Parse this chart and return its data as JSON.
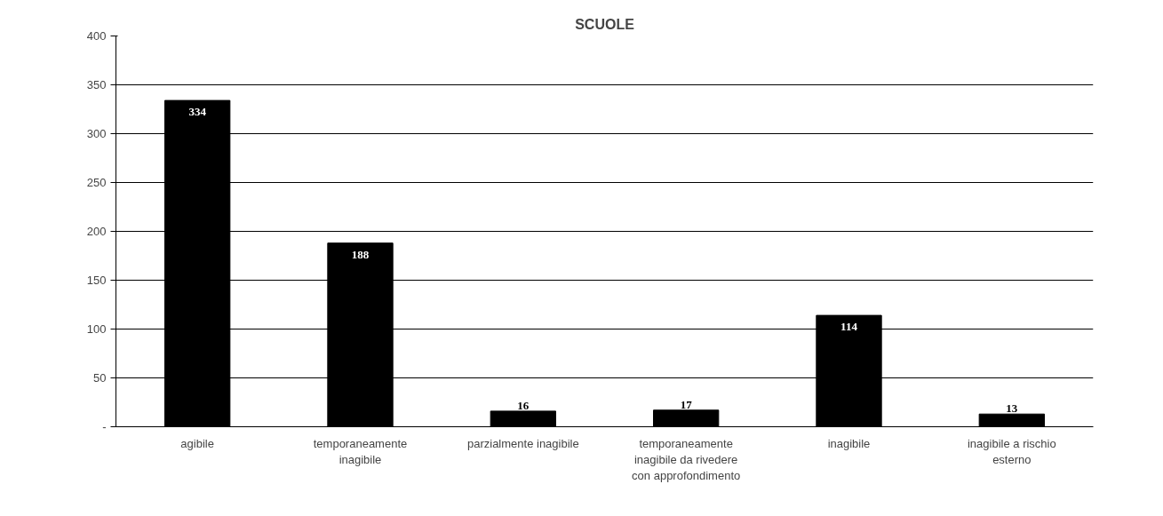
{
  "chart_data": {
    "type": "bar",
    "title": "SCUOLE",
    "categories": [
      "agibile",
      "temporaneamente inagibile",
      "parzialmente inagibile",
      "temporaneamente inagibile da rivedere con approfondimento",
      "inagibile",
      "inagibile a rischio esterno"
    ],
    "values": [
      334,
      188,
      16,
      17,
      114,
      13
    ],
    "color": "#000000",
    "ylim": [
      0,
      400
    ],
    "yticks": [
      {
        "value": 0,
        "label": "-"
      },
      50,
      100,
      150,
      200,
      250,
      300,
      350,
      400
    ],
    "grid": "y",
    "data_labels": true
  }
}
